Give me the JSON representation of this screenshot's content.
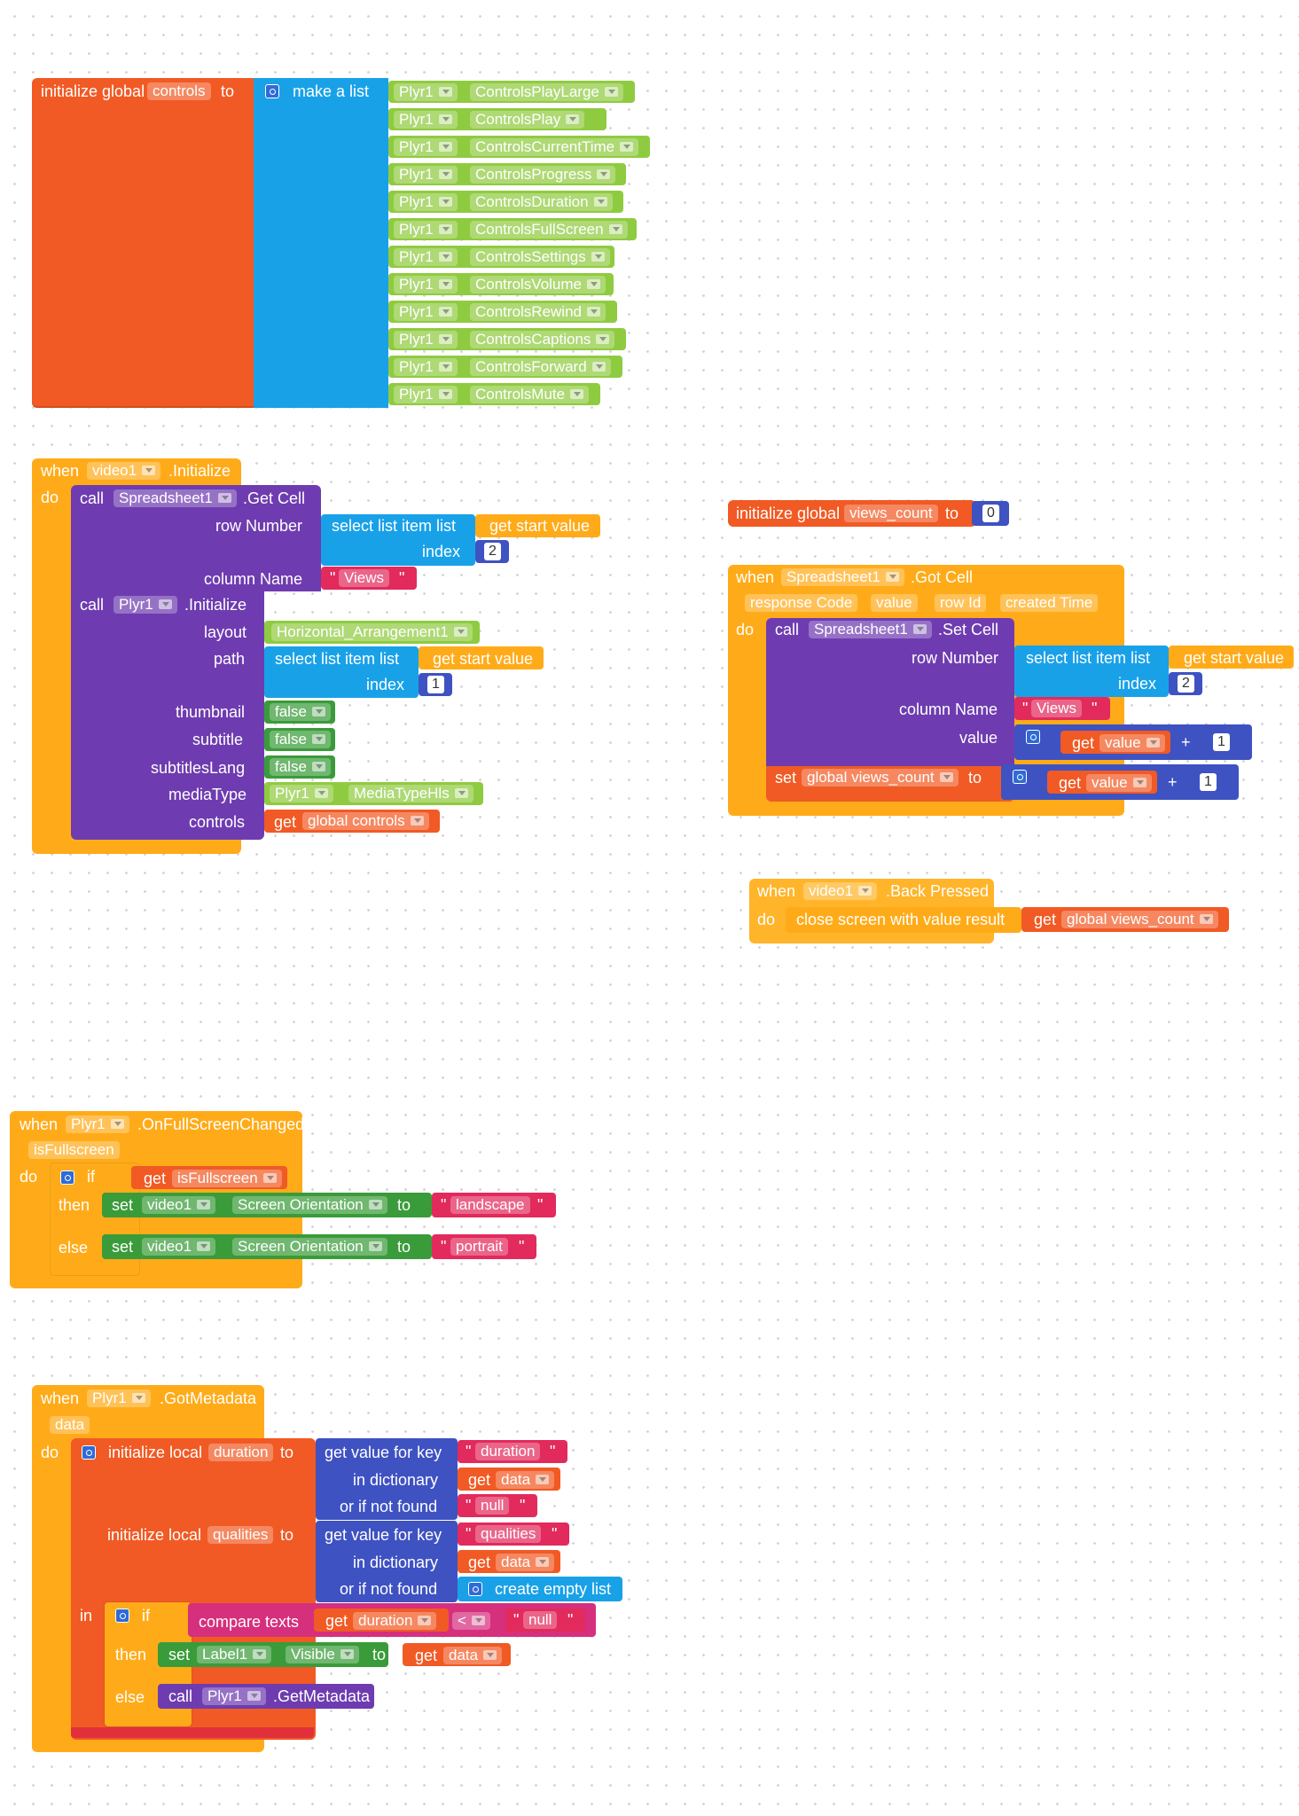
{
  "controls_block": {
    "init_global": "initialize global",
    "var_name": "controls",
    "to": "to",
    "make_list": "make a list",
    "items": [
      {
        "component": "Plyr1",
        "property": "ControlsPlayLarge"
      },
      {
        "component": "Plyr1",
        "property": "ControlsPlay"
      },
      {
        "component": "Plyr1",
        "property": "ControlsCurrentTime"
      },
      {
        "component": "Plyr1",
        "property": "ControlsProgress"
      },
      {
        "component": "Plyr1",
        "property": "ControlsDuration"
      },
      {
        "component": "Plyr1",
        "property": "ControlsFullScreen"
      },
      {
        "component": "Plyr1",
        "property": "ControlsSettings"
      },
      {
        "component": "Plyr1",
        "property": "ControlsVolume"
      },
      {
        "component": "Plyr1",
        "property": "ControlsRewind"
      },
      {
        "component": "Plyr1",
        "property": "ControlsCaptions"
      },
      {
        "component": "Plyr1",
        "property": "ControlsForward"
      },
      {
        "component": "Plyr1",
        "property": "ControlsMute"
      }
    ]
  },
  "video_init": {
    "when": "when",
    "component": "video1",
    "event": ".Initialize",
    "do": "do",
    "call": "call",
    "sheet": "Spreadsheet1",
    "get_cell": ".Get Cell",
    "row_number": "row Number",
    "select_item": "select list item  list",
    "get_start": "get start value",
    "index": "index",
    "index_val": "2",
    "column_name": "column Name",
    "views": "Views",
    "plyr": "Plyr1",
    "initialize": ".Initialize",
    "layout": "layout",
    "layout_val": "Horizontal_Arrangement1",
    "path": "path",
    "index_val2": "1",
    "thumbnail": "thumbnail",
    "subtitle": "subtitle",
    "subtitlesLang": "subtitlesLang",
    "false": "false",
    "mediaType": "mediaType",
    "mediaType_val": "MediaTypeHls",
    "controls": "controls",
    "get": "get",
    "global_controls": "global controls"
  },
  "views_count_block": {
    "init_global": "initialize global",
    "var_name": "views_count",
    "to": "to",
    "value": "0"
  },
  "got_cell": {
    "when": "when",
    "component": "Spreadsheet1",
    "event": ".Got Cell",
    "params": [
      "response Code",
      "value",
      "row Id",
      "created Time"
    ],
    "do": "do",
    "call": "call",
    "sheet": "Spreadsheet1",
    "set_cell": ".Set Cell",
    "row_number": "row Number",
    "select_item": "select list item  list",
    "get_start": "get start value",
    "index": "index",
    "index_val": "2",
    "column_name": "column Name",
    "views": "Views",
    "value_label": "value",
    "get": "get",
    "value": "value",
    "plus": "+",
    "one": "1",
    "set": "set",
    "global_views": "global views_count",
    "to": "to"
  },
  "back_pressed": {
    "when": "when",
    "component": "video1",
    "event": ".Back Pressed",
    "do": "do",
    "close": "close screen with value  result",
    "get": "get",
    "global_views": "global views_count"
  },
  "fullscreen": {
    "when": "when",
    "component": "Plyr1",
    "event": ".OnFullScreenChanged",
    "param": "isFullscreen",
    "do": "do",
    "if": "if",
    "get": "get",
    "then": "then",
    "else": "else",
    "set": "set",
    "video": "video1",
    "prop": "Screen Orientation",
    "to": "to",
    "landscape": "landscape",
    "portrait": "portrait"
  },
  "metadata": {
    "when": "when",
    "component": "Plyr1",
    "event": ".GotMetadata",
    "param": "data",
    "do": "do",
    "init_local": "initialize local",
    "duration": "duration",
    "to": "to",
    "get_value_key": "get value for key",
    "in_dict": "in dictionary",
    "not_found": "or if not found",
    "get": "get",
    "data": "data",
    "null": "null",
    "qualities": "qualities",
    "create_empty": "create empty list",
    "in": "in",
    "if": "if",
    "compare": "compare texts",
    "lt": "<",
    "then": "then",
    "else": "else",
    "set": "set",
    "label": "Label1",
    "visible": "Visible",
    "call": "call",
    "plyr": "Plyr1",
    "get_metadata": ".GetMetadata"
  }
}
